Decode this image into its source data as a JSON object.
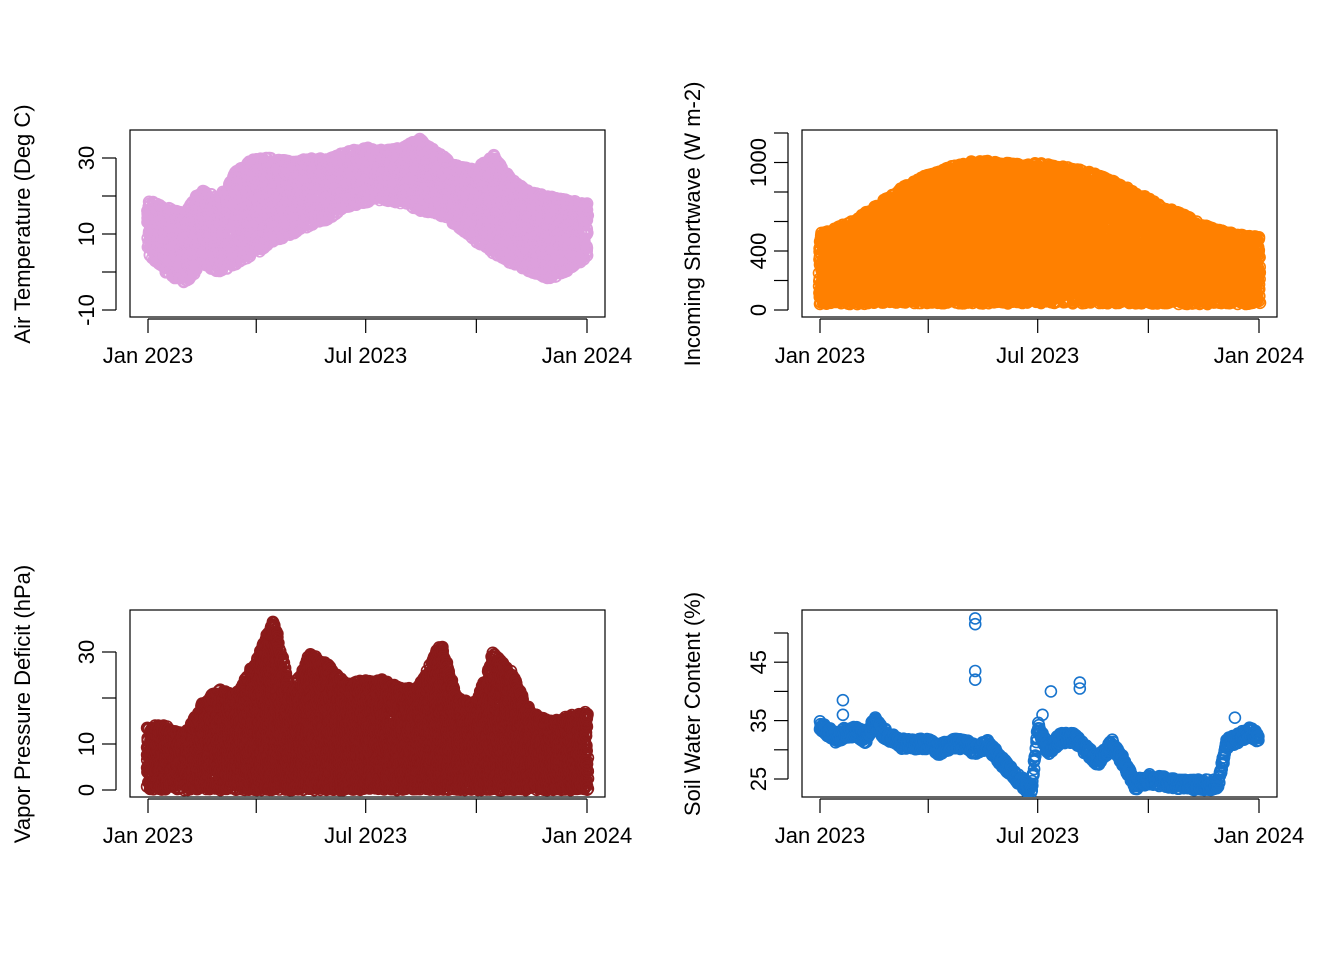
{
  "chart_data": [
    {
      "type": "scatter",
      "ylabel": "Air Temperature (Deg C)",
      "xlabel": "",
      "xlim": [
        "2023-01-01",
        "2024-01-01"
      ],
      "x_tick_labels": [
        "Jan 2023",
        "Jul 2023",
        "Jan 2024"
      ],
      "x_ticks": [
        "2023-01-01",
        "2023-04-01",
        "2023-07-01",
        "2023-10-01",
        "2024-01-01"
      ],
      "ylim": [
        -10,
        35
      ],
      "y_ticks": [
        -10,
        0,
        10,
        20,
        30
      ],
      "y_tick_labels": [
        "-10",
        "",
        "10",
        "",
        "30"
      ],
      "color": "#DDA0DD",
      "envelope": {
        "dates": [
          "2023-01-01",
          "2023-01-15",
          "2023-02-01",
          "2023-02-15",
          "2023-03-01",
          "2023-03-15",
          "2023-04-01",
          "2023-04-15",
          "2023-05-01",
          "2023-05-15",
          "2023-06-01",
          "2023-06-15",
          "2023-07-01",
          "2023-07-15",
          "2023-08-01",
          "2023-08-15",
          "2023-09-01",
          "2023-09-15",
          "2023-10-01",
          "2023-10-15",
          "2023-11-01",
          "2023-11-15",
          "2023-12-01",
          "2023-12-15",
          "2024-01-01"
        ],
        "low": [
          5,
          0,
          -3,
          2,
          0,
          2,
          5,
          8,
          10,
          12,
          14,
          17,
          18,
          19,
          18,
          16,
          15,
          12,
          8,
          5,
          2,
          0,
          -2,
          0,
          4
        ],
        "high": [
          19,
          17,
          16,
          22,
          19,
          27,
          30,
          30,
          29,
          30,
          30,
          32,
          33,
          32,
          33,
          35,
          31,
          28,
          27,
          31,
          24,
          21,
          20,
          19,
          18
        ]
      }
    },
    {
      "type": "scatter",
      "ylabel": "Incoming Shortwave (W m-2)",
      "xlabel": "",
      "xlim": [
        "2023-01-01",
        "2024-01-01"
      ],
      "x_tick_labels": [
        "Jan 2023",
        "Jul 2023",
        "Jan 2024"
      ],
      "x_ticks": [
        "2023-01-01",
        "2023-04-01",
        "2023-07-01",
        "2023-10-01",
        "2024-01-01"
      ],
      "ylim": [
        0,
        1200
      ],
      "y_ticks": [
        0,
        200,
        400,
        600,
        800,
        1000,
        1200
      ],
      "y_tick_labels": [
        "0",
        "",
        "400",
        "",
        "",
        "1000",
        ""
      ],
      "color": "#FF8000",
      "envelope": {
        "dates": [
          "2023-01-01",
          "2023-01-15",
          "2023-02-01",
          "2023-02-15",
          "2023-03-01",
          "2023-03-15",
          "2023-04-01",
          "2023-04-15",
          "2023-05-01",
          "2023-05-15",
          "2023-06-01",
          "2023-06-15",
          "2023-07-01",
          "2023-07-15",
          "2023-08-01",
          "2023-08-15",
          "2023-09-01",
          "2023-09-15",
          "2023-10-01",
          "2023-10-15",
          "2023-11-01",
          "2023-11-15",
          "2023-12-01",
          "2023-12-15",
          "2024-01-01"
        ],
        "low": [
          40,
          40,
          40,
          45,
          45,
          45,
          45,
          45,
          45,
          45,
          45,
          45,
          45,
          45,
          45,
          45,
          45,
          45,
          45,
          40,
          40,
          40,
          40,
          40,
          40
        ],
        "high": [
          520,
          560,
          620,
          700,
          780,
          860,
          920,
          960,
          1000,
          1020,
          1000,
          990,
          1000,
          980,
          960,
          930,
          880,
          820,
          760,
          700,
          640,
          580,
          540,
          510,
          500
        ]
      }
    },
    {
      "type": "scatter",
      "ylabel": "Vapor Pressure Deficit (hPa)",
      "xlabel": "",
      "xlim": [
        "2023-01-01",
        "2024-01-01"
      ],
      "x_tick_labels": [
        "Jan 2023",
        "Jul 2023",
        "Jan 2024"
      ],
      "x_ticks": [
        "2023-01-01",
        "2023-04-01",
        "2023-07-01",
        "2023-10-01",
        "2024-01-01"
      ],
      "ylim": [
        0,
        40
      ],
      "y_ticks": [
        0,
        10,
        20,
        30
      ],
      "y_tick_labels": [
        "0",
        "10",
        "",
        "30"
      ],
      "color": "#8B1A1A",
      "envelope": {
        "dates": [
          "2023-01-01",
          "2023-01-15",
          "2023-02-01",
          "2023-02-15",
          "2023-03-01",
          "2023-03-15",
          "2023-04-01",
          "2023-04-15",
          "2023-05-01",
          "2023-05-15",
          "2023-06-01",
          "2023-06-15",
          "2023-07-01",
          "2023-07-15",
          "2023-08-01",
          "2023-08-15",
          "2023-09-01",
          "2023-09-15",
          "2023-10-01",
          "2023-10-15",
          "2023-11-01",
          "2023-11-15",
          "2023-12-01",
          "2023-12-15",
          "2024-01-01"
        ],
        "low": [
          0,
          0,
          0,
          0,
          0,
          0,
          0,
          0,
          0,
          0,
          0,
          0,
          0,
          0,
          0,
          0,
          0,
          0,
          0,
          0,
          0,
          0,
          0,
          0,
          0
        ],
        "high": [
          14,
          14,
          12,
          19,
          22,
          21,
          28,
          37,
          21,
          30,
          27,
          23,
          24,
          24,
          22,
          23,
          32,
          20,
          19,
          30,
          25,
          17,
          15,
          16,
          17
        ]
      }
    },
    {
      "type": "scatter",
      "ylabel": "Soil Water Content (%)",
      "xlabel": "",
      "xlim": [
        "2023-01-01",
        "2024-01-01"
      ],
      "x_tick_labels": [
        "Jan 2023",
        "Jul 2023",
        "Jan 2024"
      ],
      "x_ticks": [
        "2023-01-01",
        "2023-04-01",
        "2023-07-01",
        "2023-10-01",
        "2024-01-01"
      ],
      "ylim": [
        22,
        53
      ],
      "y_ticks": [
        25,
        30,
        35,
        40,
        45,
        50
      ],
      "y_tick_labels": [
        "25",
        "",
        "35",
        "",
        "45",
        ""
      ],
      "color": "#1874CD",
      "x": [
        "2023-01-01",
        "2023-01-08",
        "2023-01-15",
        "2023-01-22",
        "2023-02-01",
        "2023-02-08",
        "2023-02-15",
        "2023-02-22",
        "2023-03-01",
        "2023-03-10",
        "2023-03-20",
        "2023-04-01",
        "2023-04-10",
        "2023-04-20",
        "2023-05-01",
        "2023-05-10",
        "2023-05-20",
        "2023-06-01",
        "2023-06-10",
        "2023-06-20",
        "2023-06-26",
        "2023-07-01",
        "2023-07-10",
        "2023-07-20",
        "2023-08-01",
        "2023-08-10",
        "2023-08-20",
        "2023-09-01",
        "2023-09-10",
        "2023-09-20",
        "2023-10-01",
        "2023-10-15",
        "2023-11-01",
        "2023-11-15",
        "2023-11-28",
        "2023-12-05",
        "2023-12-15",
        "2023-12-25",
        "2024-01-01"
      ],
      "y": [
        34,
        33,
        32,
        33,
        33,
        32,
        35,
        33,
        32,
        31,
        31,
        31,
        30,
        31,
        31,
        30,
        31,
        28,
        26,
        24,
        23,
        34,
        30,
        32,
        32,
        30,
        28,
        31,
        28,
        24,
        25,
        24.5,
        24,
        24,
        24,
        31,
        32,
        33,
        32
      ],
      "outliers": {
        "x": [
          "2023-01-20",
          "2023-01-20",
          "2023-05-10",
          "2023-05-10",
          "2023-05-10",
          "2023-05-10",
          "2023-06-28",
          "2023-07-05",
          "2023-07-12",
          "2023-08-05",
          "2023-08-05",
          "2023-12-12"
        ],
        "y": [
          38.5,
          36,
          51.5,
          52.5,
          43.5,
          42,
          28,
          36,
          40,
          41.5,
          40.5,
          35.5
        ]
      }
    }
  ]
}
